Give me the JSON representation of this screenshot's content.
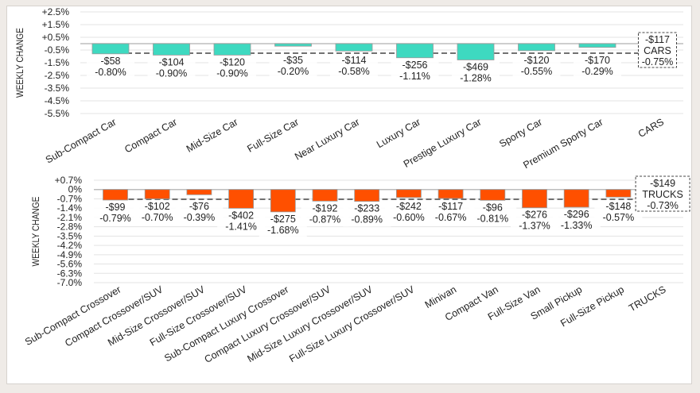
{
  "chart_data": [
    {
      "type": "bar",
      "name": "cars",
      "title": "",
      "xlabel": "",
      "ylabel": "WEEKLY CHANGE",
      "ylim": [
        -5.5,
        2.5
      ],
      "yticks": [
        2.5,
        1.5,
        0.5,
        -0.5,
        -1.5,
        -2.5,
        -3.5,
        -4.5,
        -5.5
      ],
      "ytick_labels": [
        "+2.5%",
        "+1.5%",
        "+0.5%",
        "-0.5%",
        "-1.5%",
        "-2.5%",
        "-3.5%",
        "-4.5%",
        "-5.5%"
      ],
      "grid": true,
      "bar_color": "#3ed9c0",
      "categories": [
        "Sub-Compact Car",
        "Compact Car",
        "Mid-Size Car",
        "Full-Size Car",
        "Near Luxury Car",
        "Luxury Car",
        "Prestige Luxury Car",
        "Sporty Car",
        "Premium Sporty Car",
        "CARS"
      ],
      "values": [
        -0.8,
        -0.9,
        -0.9,
        -0.2,
        -0.58,
        -1.11,
        -1.28,
        -0.55,
        -0.29,
        null
      ],
      "dollar_labels": [
        "-$58",
        "-$104",
        "-$120",
        "-$35",
        "-$114",
        "-$256",
        "-$469",
        "-$120",
        "-$170",
        "-$117"
      ],
      "percent_labels": [
        "-0.80%",
        "-0.90%",
        "-0.90%",
        "-0.20%",
        "-0.58%",
        "-1.11%",
        "-1.28%",
        "-0.55%",
        "-0.29%",
        "-0.75%"
      ],
      "average": {
        "value": -0.75,
        "label_line1": "-$117",
        "label_line2": "CARS",
        "label_line3": "-0.75%"
      }
    },
    {
      "type": "bar",
      "name": "trucks",
      "title": "",
      "xlabel": "",
      "ylabel": "WEEKLY CHANGE",
      "ylim": [
        -7.0,
        0.7
      ],
      "yticks": [
        0.7,
        0,
        -0.7,
        -1.4,
        -2.1,
        -2.8,
        -3.5,
        -4.2,
        -4.9,
        -5.6,
        -6.3,
        -7.0
      ],
      "ytick_labels": [
        "+0.7%",
        "0%",
        "-0.7%",
        "-1.4%",
        "-2.1%",
        "-2.8%",
        "-3.5%",
        "-4.2%",
        "-4.9%",
        "-5.6%",
        "-6.3%",
        "-7.0%"
      ],
      "grid": true,
      "bar_color": "#ff5000",
      "categories": [
        "Sub-Compact Crossover",
        "Compact Crossover/SUV",
        "Mid-Size Crossover/SUV",
        "Full-Size Crossover/SUV",
        "Sub-Compact Luxury Crossover",
        "Compact Luxury Crossover/SUV",
        "Mid-Size Luxury Crossover/SUV",
        "Full-Size Luxury Crossover/SUV",
        "Minivan",
        "Compact Van",
        "Full-Size Van",
        "Small Pickup",
        "Full-Size Pickup",
        "TRUCKS"
      ],
      "values": [
        -0.79,
        -0.7,
        -0.39,
        -1.41,
        -1.68,
        -0.87,
        -0.89,
        -0.6,
        -0.67,
        -0.81,
        -1.37,
        -1.33,
        -0.57,
        null
      ],
      "dollar_labels": [
        "-$99",
        "-$102",
        "-$76",
        "-$402",
        "-$275",
        "-$192",
        "-$233",
        "-$242",
        "-$117",
        "-$96",
        "-$276",
        "-$296",
        "-$148",
        "-$149"
      ],
      "percent_labels": [
        "-0.79%",
        "-0.70%",
        "-0.39%",
        "-1.41%",
        "-1.68%",
        "-0.87%",
        "-0.89%",
        "-0.60%",
        "-0.67%",
        "-0.81%",
        "-1.37%",
        "-1.33%",
        "-0.57%",
        "-0.73%"
      ],
      "average": {
        "value": -0.73,
        "label_line1": "-$149",
        "label_line2": "TRUCKS",
        "label_line3": "-0.73%"
      }
    }
  ]
}
